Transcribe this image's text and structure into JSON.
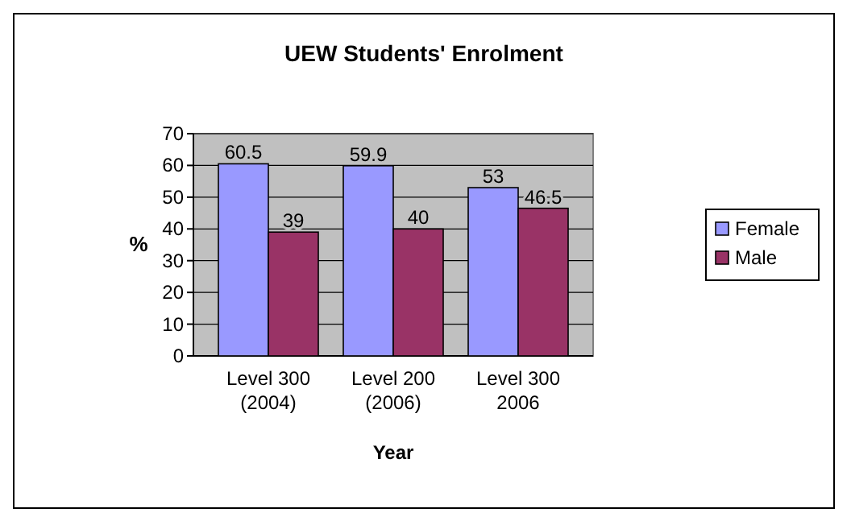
{
  "chart_data": {
    "type": "bar",
    "title": "UEW Students' Enrolment",
    "xlabel": "Year",
    "ylabel": "%",
    "categories": [
      "Level 300\n(2004)",
      "Level 200\n(2006)",
      "Level 300\n2006"
    ],
    "series": [
      {
        "name": "Female",
        "color": "#9999ff",
        "values": [
          60.5,
          59.9,
          53
        ]
      },
      {
        "name": "Male",
        "color": "#993366",
        "values": [
          39,
          40,
          46.5
        ]
      }
    ],
    "ylim": [
      0,
      70
    ],
    "yticks": [
      0,
      10,
      20,
      30,
      40,
      50,
      60,
      70
    ],
    "grid": "y",
    "legend": "right",
    "data_labels": true
  }
}
